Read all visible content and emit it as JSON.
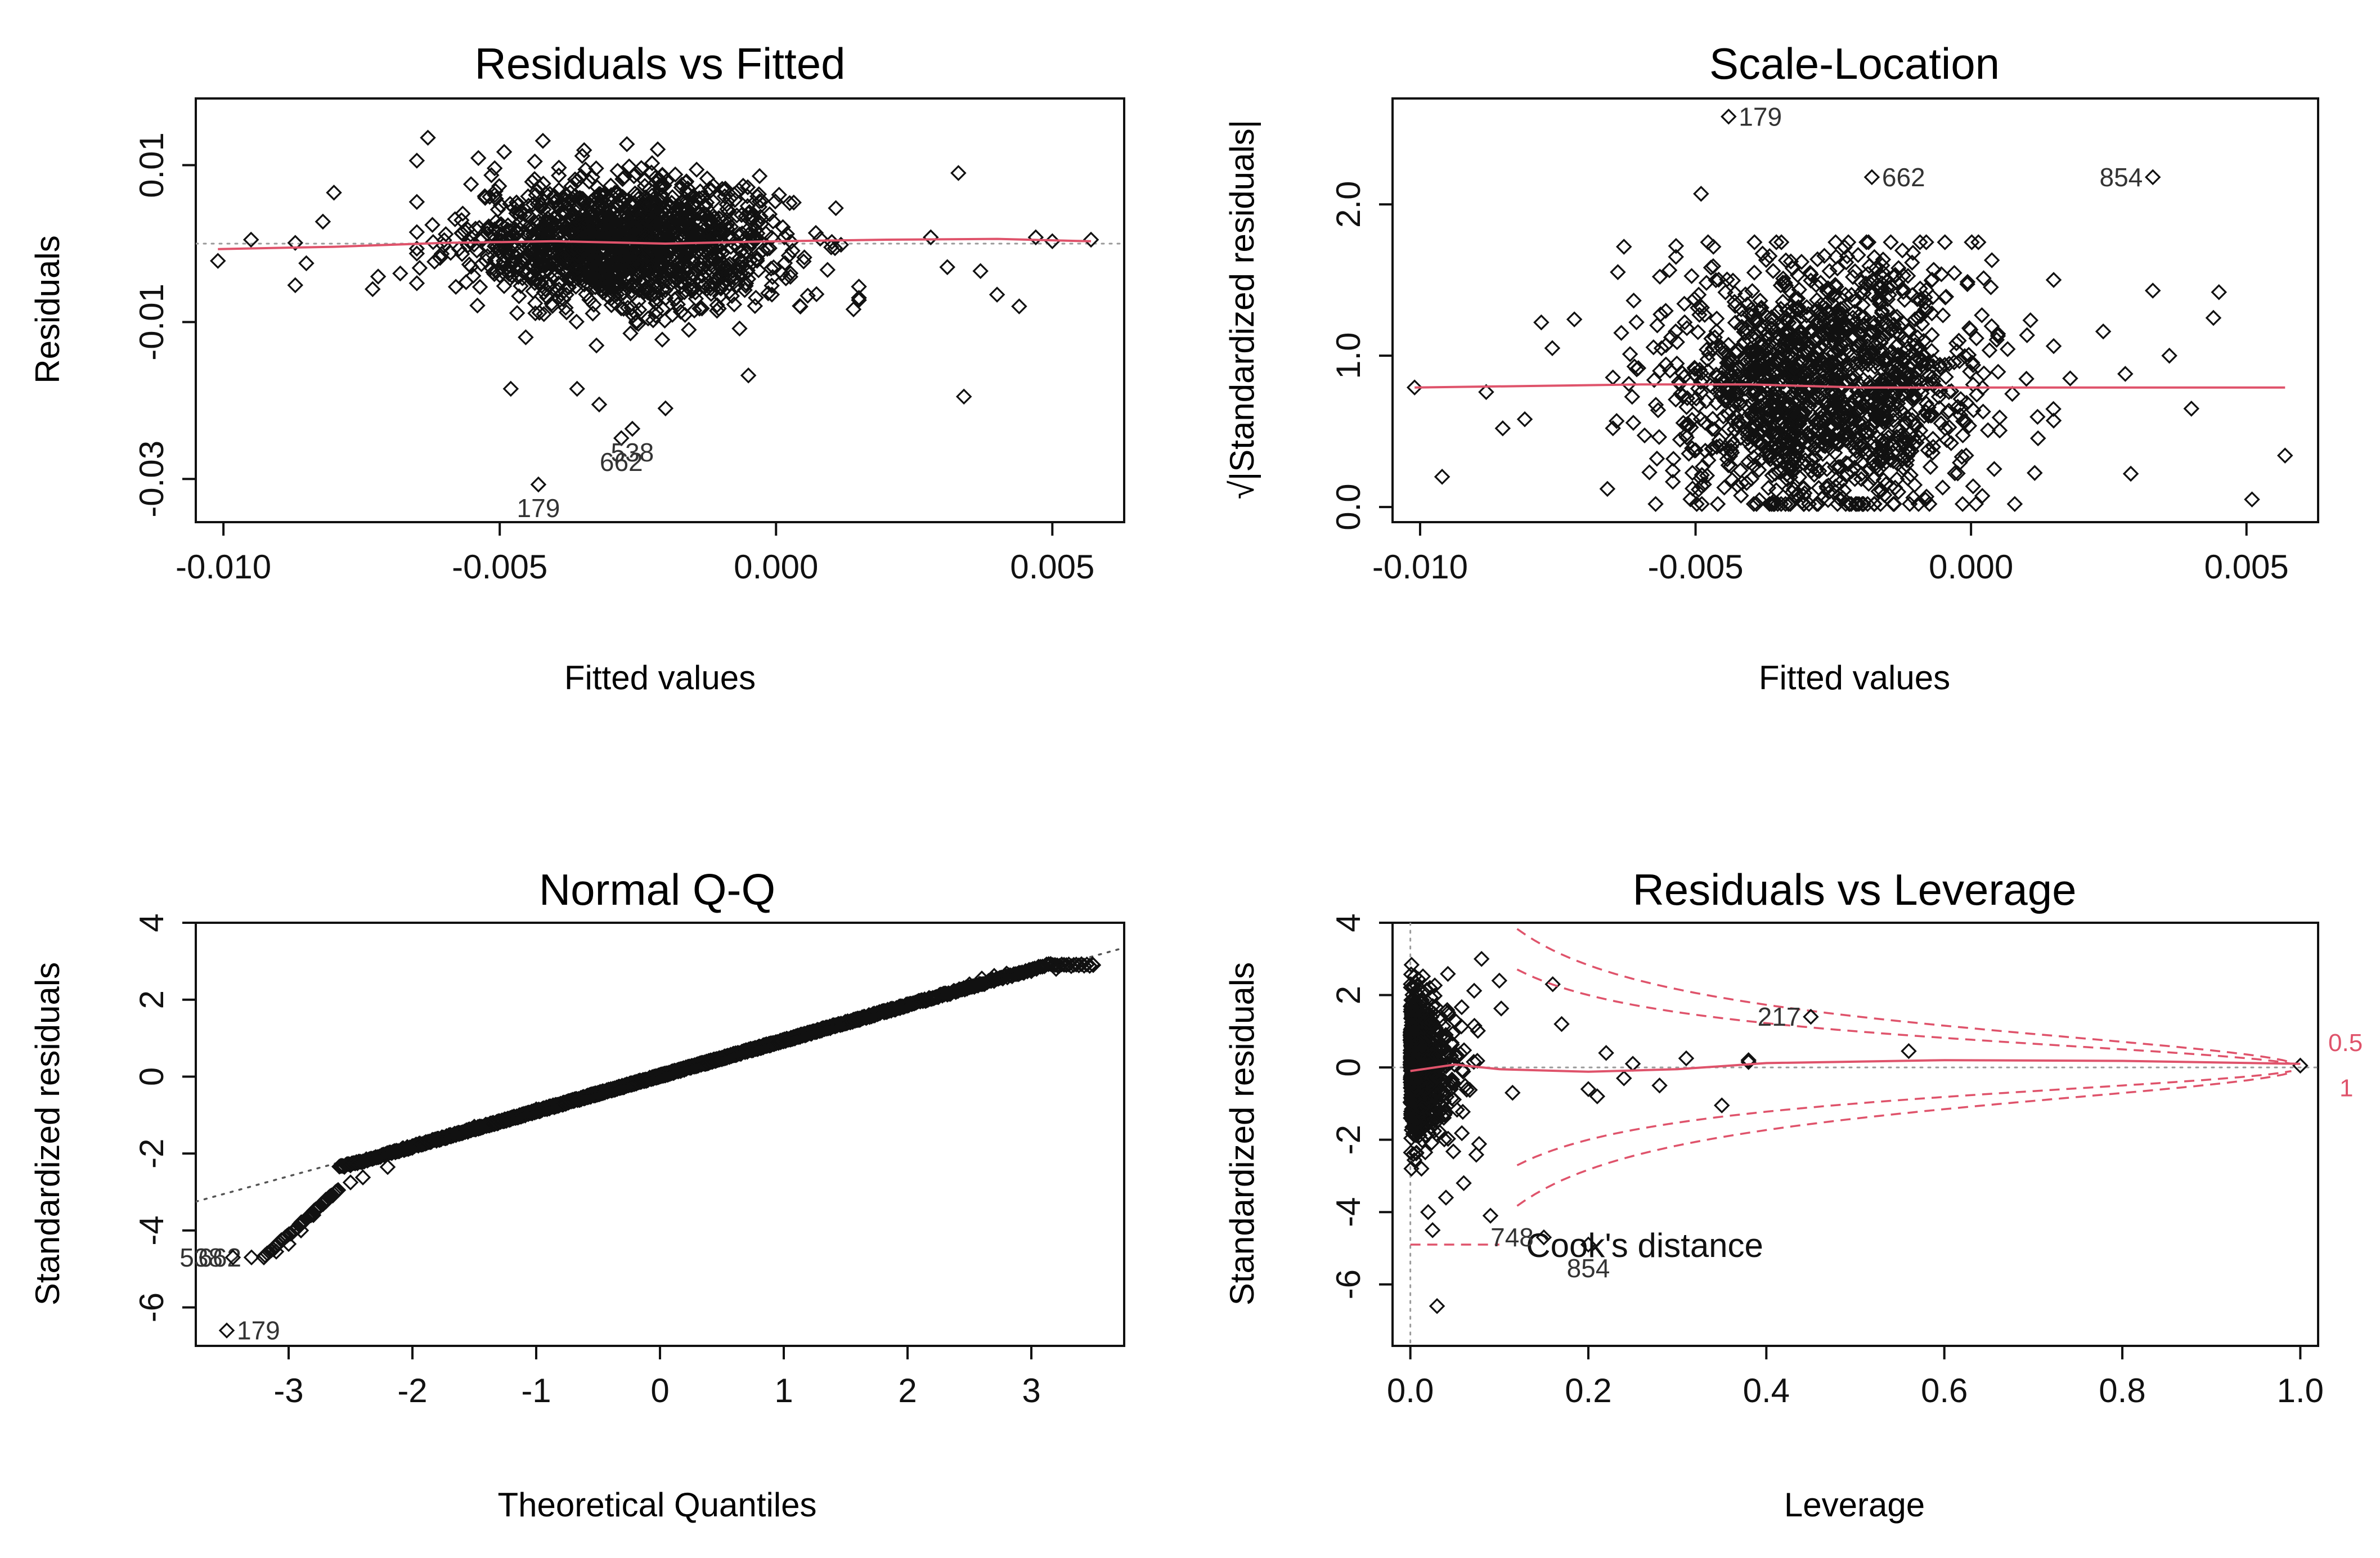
{
  "colors": {
    "points": "#111111",
    "smooth": "#df536b",
    "refline": "#9a9a9a",
    "axis": "#111111",
    "background": "#ffffff"
  },
  "chart_data": [
    {
      "id": "resid-fitted",
      "type": "scatter",
      "title": "Residuals vs Fitted",
      "xlabel": "Fitted values",
      "ylabel": "Residuals",
      "xlim": [
        -0.0105,
        0.0063
      ],
      "ylim": [
        -0.0355,
        0.0185
      ],
      "xticks": [
        -0.01,
        -0.005,
        0.0,
        0.005
      ],
      "xtick_labels": [
        "-0.010",
        "-0.005",
        "0.000",
        "0.005"
      ],
      "yticks": [
        -0.03,
        -0.01,
        0.01
      ],
      "ytick_labels": [
        "-0.03",
        "-0.01",
        "0.01"
      ],
      "reference_line": {
        "kind": "h",
        "value": 0
      },
      "cloud": {
        "n": 1500,
        "x_mean": -0.0027,
        "x_sd": 0.0014,
        "y_sd": 0.004,
        "x_min": -0.0065,
        "x_max": 0.0015,
        "y_min": -0.014,
        "y_max": 0.014
      },
      "points": [
        [
          -0.0101,
          -0.0022
        ],
        [
          -0.0095,
          0.0005
        ],
        [
          -0.0087,
          0.0001
        ],
        [
          -0.0087,
          -0.0053
        ],
        [
          -0.0085,
          -0.0025
        ],
        [
          -0.008,
          0.0065
        ],
        [
          -0.0082,
          0.0028
        ],
        [
          -0.0073,
          -0.0058
        ],
        [
          -0.0072,
          -0.0042
        ],
        [
          -0.0068,
          -0.0038
        ],
        [
          -0.0063,
          0.0135
        ],
        [
          -0.0048,
          -0.0185
        ],
        [
          -0.0036,
          -0.0185
        ],
        [
          -0.0032,
          -0.0205
        ],
        [
          -0.002,
          -0.021
        ],
        [
          -0.0005,
          -0.0168
        ],
        [
          0.0028,
          0.0008
        ],
        [
          0.0031,
          -0.003
        ],
        [
          0.0033,
          0.009
        ],
        [
          0.0034,
          -0.0195
        ],
        [
          0.0037,
          -0.0035
        ],
        [
          0.004,
          -0.0065
        ],
        [
          0.0044,
          -0.008
        ],
        [
          0.0047,
          0.0008
        ],
        [
          0.005,
          0.0003
        ],
        [
          0.0057,
          0.0005
        ]
      ],
      "labeled_points": [
        {
          "label": "179",
          "x": -0.0043,
          "y": -0.0307,
          "side": "below"
        },
        {
          "label": "662",
          "x": -0.0028,
          "y": -0.0248,
          "side": "below"
        },
        {
          "label": "538",
          "x": -0.0026,
          "y": -0.0236,
          "side": "below"
        }
      ],
      "smooth": [
        [
          -0.0101,
          -0.0007
        ],
        [
          -0.008,
          -0.0004
        ],
        [
          -0.006,
          0.0001
        ],
        [
          -0.004,
          0.0003
        ],
        [
          -0.002,
          0.0
        ],
        [
          0.0,
          0.0003
        ],
        [
          0.002,
          0.0005
        ],
        [
          0.004,
          0.0006
        ],
        [
          0.0057,
          0.0003
        ]
      ]
    },
    {
      "id": "scale-location",
      "type": "scatter",
      "title": "Scale-Location",
      "xlabel": "Fitted values",
      "ylabel": "√|Standardized residuals|",
      "xlim": [
        -0.0105,
        0.0063
      ],
      "ylim": [
        -0.1,
        2.7
      ],
      "xticks": [
        -0.01,
        -0.005,
        0.0,
        0.005
      ],
      "xtick_labels": [
        "-0.010",
        "-0.005",
        "0.000",
        "0.005"
      ],
      "yticks": [
        0.0,
        1.0,
        2.0
      ],
      "ytick_labels": [
        "0.0",
        "1.0",
        "2.0"
      ],
      "cloud": {
        "n": 1500,
        "x_mean": -0.0027,
        "x_sd": 0.0014,
        "y_mean": 0.8,
        "y_sd": 0.42,
        "x_min": -0.0065,
        "x_max": 0.0015,
        "y_min": 0.02,
        "y_max": 1.75
      },
      "points": [
        [
          -0.0101,
          0.79
        ],
        [
          -0.0096,
          0.2
        ],
        [
          -0.0088,
          0.76
        ],
        [
          -0.0085,
          0.52
        ],
        [
          -0.0081,
          0.58
        ],
        [
          -0.0078,
          1.22
        ],
        [
          -0.0076,
          1.05
        ],
        [
          -0.0072,
          1.24
        ],
        [
          -0.0066,
          0.12
        ],
        [
          -0.0063,
          1.72
        ],
        [
          -0.0049,
          2.07
        ],
        [
          0.0018,
          0.85
        ],
        [
          0.0024,
          1.16
        ],
        [
          0.0028,
          0.88
        ],
        [
          0.0029,
          0.22
        ],
        [
          0.0033,
          1.43
        ],
        [
          0.0036,
          1.0
        ],
        [
          0.004,
          0.65
        ],
        [
          0.0044,
          1.25
        ],
        [
          0.0045,
          1.42
        ],
        [
          0.0051,
          0.05
        ],
        [
          0.0057,
          0.34
        ]
      ],
      "labeled_points": [
        {
          "label": "179",
          "x": -0.0044,
          "y": 2.58,
          "side": "right"
        },
        {
          "label": "662",
          "x": -0.0018,
          "y": 2.18,
          "side": "right"
        },
        {
          "label": "854",
          "x": 0.0033,
          "y": 2.18,
          "side": "left"
        }
      ],
      "smooth": [
        [
          -0.0101,
          0.79
        ],
        [
          -0.008,
          0.8
        ],
        [
          -0.006,
          0.81
        ],
        [
          -0.004,
          0.81
        ],
        [
          -0.002,
          0.79
        ],
        [
          0.0,
          0.79
        ],
        [
          0.002,
          0.79
        ],
        [
          0.004,
          0.79
        ],
        [
          0.0057,
          0.79
        ]
      ]
    },
    {
      "id": "normal-qq",
      "type": "scatter",
      "title": "Normal Q-Q",
      "xlabel": "Theoretical Quantiles",
      "ylabel": "Standardized residuals",
      "xlim": [
        -3.75,
        3.75
      ],
      "ylim": [
        -7.0,
        4.0
      ],
      "xticks": [
        -3,
        -2,
        -1,
        0,
        1,
        2,
        3
      ],
      "xtick_labels": [
        "-3",
        "-2",
        "-1",
        "0",
        "1",
        "2",
        "3"
      ],
      "yticks": [
        -6,
        -4,
        -2,
        0,
        2,
        4
      ],
      "ytick_labels": [
        "-6",
        "-4",
        "-2",
        "0",
        "2",
        "4"
      ],
      "qq_reference": {
        "slope": 0.88,
        "intercept": 0.05
      },
      "points": [
        [
          -3.2,
          -4.7
        ],
        [
          -3.1,
          -4.55
        ],
        [
          -3.0,
          -4.35
        ],
        [
          -2.9,
          -4.0
        ],
        [
          -2.8,
          -3.6
        ],
        [
          -2.7,
          -3.2
        ],
        [
          -2.6,
          -2.95
        ],
        [
          -2.5,
          -2.75
        ],
        [
          -2.4,
          -2.62
        ],
        [
          -2.2,
          -2.35
        ],
        [
          -2.0,
          -1.85
        ],
        [
          -1.5,
          -1.3
        ],
        [
          -1.0,
          -0.85
        ],
        [
          -0.5,
          -0.42
        ],
        [
          0.0,
          0.02
        ],
        [
          0.5,
          0.45
        ],
        [
          1.0,
          0.92
        ],
        [
          1.5,
          1.38
        ],
        [
          2.0,
          1.86
        ],
        [
          2.3,
          2.16
        ],
        [
          2.5,
          2.4
        ],
        [
          2.6,
          2.55
        ],
        [
          2.7,
          2.62
        ],
        [
          2.8,
          2.68
        ],
        [
          2.9,
          2.7
        ],
        [
          3.0,
          2.74
        ],
        [
          3.2,
          2.8
        ],
        [
          3.5,
          2.9
        ]
      ],
      "labeled_points": [
        {
          "label": "179",
          "x": -3.5,
          "y": -6.6,
          "side": "right"
        },
        {
          "label": "662",
          "x": -3.3,
          "y": -4.7,
          "side": "left"
        },
        {
          "label": "538",
          "x": -3.45,
          "y": -4.7,
          "side": "left"
        }
      ]
    },
    {
      "id": "resid-leverage",
      "type": "scatter",
      "title": "Residuals vs Leverage",
      "xlabel": "Leverage",
      "ylabel": "Standardized residuals",
      "xlim": [
        -0.02,
        1.02
      ],
      "ylim": [
        -7.7,
        4.0
      ],
      "xticks": [
        0.0,
        0.2,
        0.4,
        0.6,
        0.8,
        1.0
      ],
      "xtick_labels": [
        "0.0",
        "0.2",
        "0.4",
        "0.6",
        "0.8",
        "1.0"
      ],
      "yticks": [
        -6,
        -4,
        -2,
        0,
        2,
        4
      ],
      "ytick_labels": [
        "-6",
        "-4",
        "-2",
        "0",
        "2",
        "4"
      ],
      "reference_line": {
        "kind": "h",
        "value": 0
      },
      "reference_vline": 0,
      "cloud": {
        "n": 900,
        "x_scale": 0.03,
        "x_max": 0.16,
        "y_sd": 1.0,
        "y_min": -2.8,
        "y_max": 2.9
      },
      "points": [
        [
          0.02,
          -4.0
        ],
        [
          0.025,
          -4.5
        ],
        [
          0.03,
          -6.6
        ],
        [
          0.04,
          -3.6
        ],
        [
          0.06,
          -3.2
        ],
        [
          0.09,
          -4.1
        ],
        [
          0.08,
          3.0
        ],
        [
          0.1,
          2.4
        ],
        [
          0.16,
          2.3
        ],
        [
          0.17,
          1.2
        ],
        [
          0.2,
          -0.6
        ],
        [
          0.21,
          -0.8
        ],
        [
          0.22,
          0.4
        ],
        [
          0.24,
          -0.3
        ],
        [
          0.25,
          0.1
        ],
        [
          0.28,
          -0.5
        ],
        [
          0.31,
          0.25
        ],
        [
          0.35,
          -1.05
        ],
        [
          0.38,
          0.15
        ],
        [
          0.38,
          0.2
        ],
        [
          0.56,
          0.45
        ],
        [
          1.0,
          0.05
        ]
      ],
      "labeled_points": [
        {
          "label": "217",
          "x": 0.45,
          "y": 1.4,
          "side": "left"
        },
        {
          "label": "748",
          "x": 0.15,
          "y": -4.7,
          "side": "left"
        },
        {
          "label": "854",
          "x": 0.2,
          "y": -4.9,
          "side": "below"
        }
      ],
      "smooth": [
        [
          0.0,
          -0.1
        ],
        [
          0.05,
          0.08
        ],
        [
          0.1,
          -0.05
        ],
        [
          0.2,
          -0.12
        ],
        [
          0.3,
          -0.05
        ],
        [
          0.4,
          0.12
        ],
        [
          0.6,
          0.2
        ],
        [
          0.8,
          0.18
        ],
        [
          1.0,
          0.1
        ]
      ],
      "cooks": {
        "levels": [
          "0.5",
          "1"
        ],
        "legend": "Cook's distance"
      }
    }
  ]
}
